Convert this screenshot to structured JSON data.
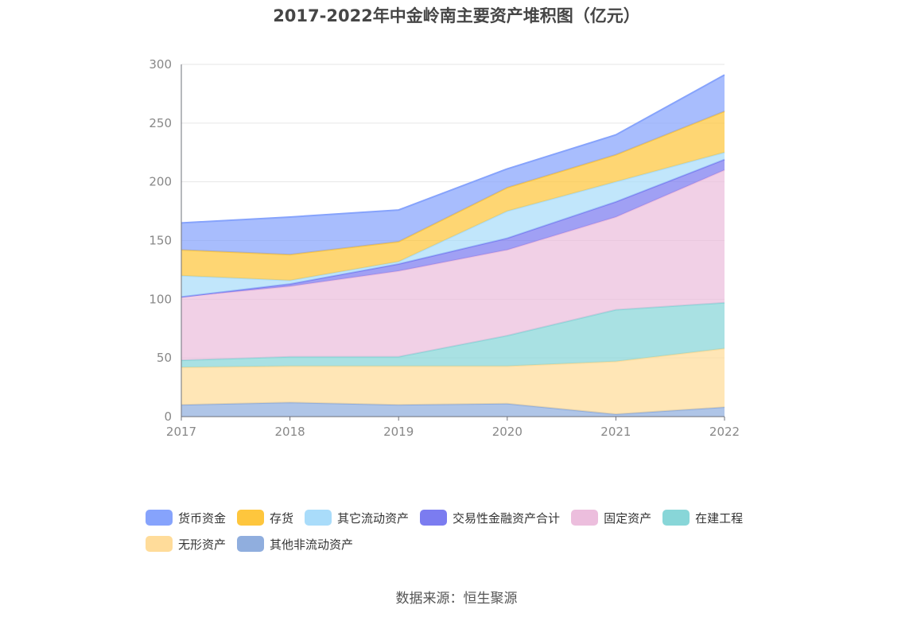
{
  "chart_data": {
    "type": "area",
    "stacked": true,
    "title": "2017-2022年中金岭南主要资产堆积图（亿元）",
    "x": [
      "2017",
      "2018",
      "2019",
      "2020",
      "2021",
      "2022"
    ],
    "ylim": [
      0,
      300
    ],
    "yticks": [
      0,
      50,
      100,
      150,
      200,
      250,
      300
    ],
    "grid": true,
    "legend_position": "bottom",
    "series": [
      {
        "name": "其他非流动资产",
        "color": "#90aede",
        "values": [
          10,
          12,
          10,
          11,
          2,
          8
        ]
      },
      {
        "name": "无形资产",
        "color": "#ffdc9a",
        "values": [
          32,
          31,
          33,
          32,
          45,
          50
        ]
      },
      {
        "name": "在建工程",
        "color": "#88d6d8",
        "values": [
          6,
          8,
          8,
          26,
          44,
          39
        ]
      },
      {
        "name": "固定资产",
        "color": "#ecbedd",
        "values": [
          54,
          60,
          73,
          73,
          79,
          113
        ]
      },
      {
        "name": "交易性金融资产合计",
        "color": "#7b7cf0",
        "values": [
          0,
          2,
          6,
          10,
          13,
          9
        ]
      },
      {
        "name": "其它流动资产",
        "color": "#a9dcfa",
        "values": [
          18,
          3,
          2,
          23,
          17,
          6
        ]
      },
      {
        "name": "存货",
        "color": "#fec63d",
        "values": [
          22,
          22,
          17,
          20,
          23,
          35
        ]
      },
      {
        "name": "货币资金",
        "color": "#86a3fc",
        "values": [
          23,
          32,
          27,
          16,
          17,
          31
        ]
      }
    ]
  },
  "legend_order": [
    "货币资金",
    "存货",
    "其它流动资产",
    "交易性金融资产合计",
    "固定资产",
    "在建工程",
    "无形资产",
    "其他非流动资产"
  ],
  "source": "数据来源：恒生聚源"
}
